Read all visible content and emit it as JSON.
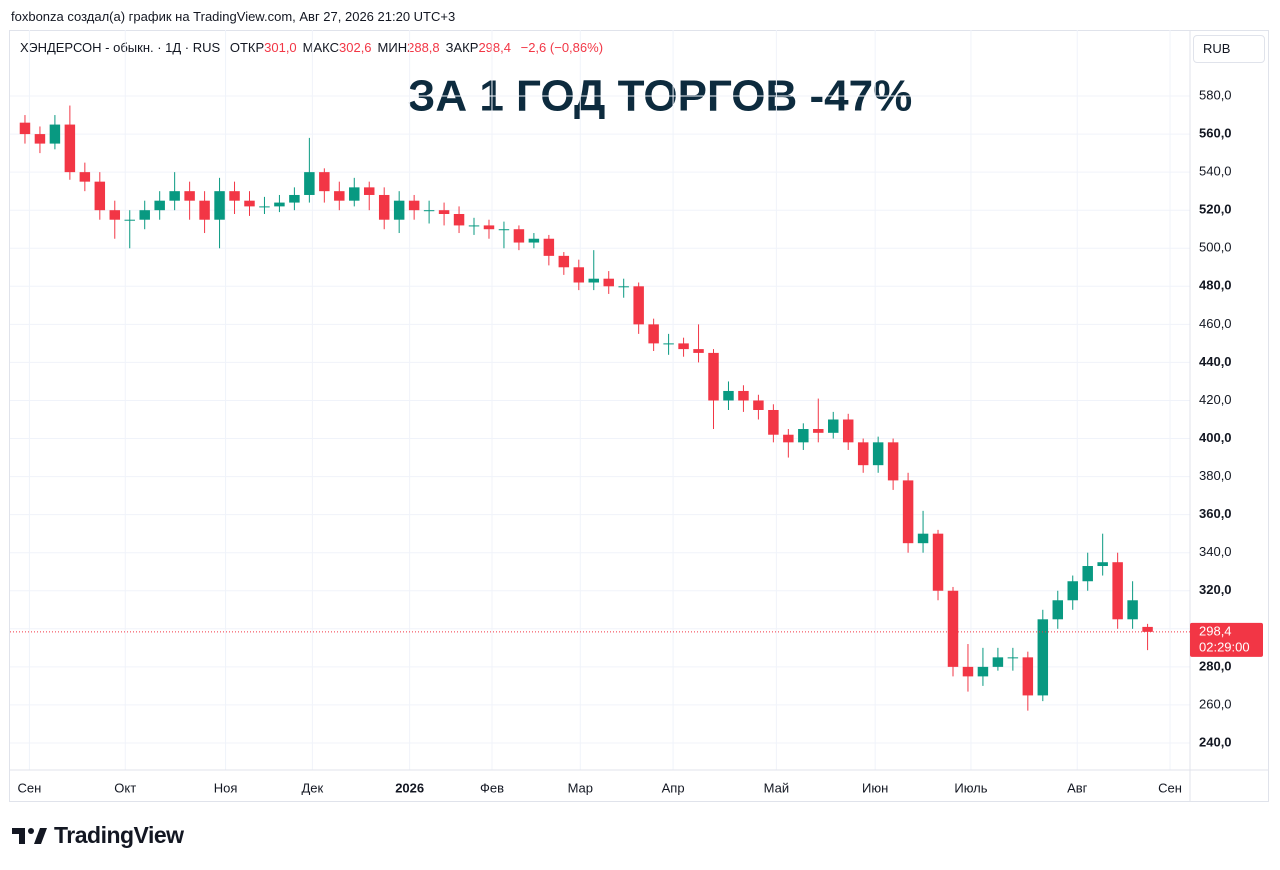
{
  "header": {
    "author_line": "foxbonza создал(а) график на TradingView.com, Авг 27, 2026 21:20 UTC+3",
    "currency": "RUB",
    "logo": "TradingView"
  },
  "chart_data": {
    "type": "candlestick",
    "title": "ЗА 1 ГОД ТОРГОВ -47%",
    "symbol": "ХЭНДЕРСОН - обыкн. · 1Д · RUS",
    "ohlc_legend": [
      {
        "name": "ОТКР",
        "value": 301.0,
        "label": "301,0"
      },
      {
        "name": "МАКС",
        "value": 302.6,
        "label": "302,6"
      },
      {
        "name": "МИН",
        "value": 288.8,
        "label": "288,8"
      },
      {
        "name": "ЗАКР",
        "value": 298.4,
        "label": "298,4"
      }
    ],
    "change": {
      "value": -2.6,
      "label": "−2,6"
    },
    "change_pct": {
      "value": -0.86,
      "label": "(−0,86%)"
    },
    "last_price": {
      "value": 298.4,
      "label": "298,4"
    },
    "countdown": "02:29:00",
    "up_color": "#089981",
    "down_color": "#f23645",
    "grid": true,
    "x": [
      0,
      1,
      2,
      3,
      4,
      5,
      6,
      7,
      8,
      9,
      10,
      11,
      12,
      13,
      14,
      15,
      16,
      17,
      18,
      19,
      20,
      21,
      22,
      23,
      24,
      25,
      26,
      27,
      28,
      29,
      30,
      31,
      32,
      33,
      34,
      35,
      36,
      37,
      38,
      39,
      40,
      41,
      42,
      43,
      44,
      45,
      46,
      47,
      48,
      49,
      50,
      51,
      52,
      53,
      54,
      55,
      56,
      57,
      58,
      59,
      60,
      61,
      62,
      63,
      64,
      65,
      66,
      67,
      68,
      69,
      70,
      71,
      72,
      73,
      74,
      75
    ],
    "open": [
      566,
      560,
      555,
      565,
      540,
      535,
      520,
      515,
      515,
      520,
      525,
      530,
      525,
      515,
      530,
      525,
      522,
      522,
      524,
      528,
      540,
      530,
      525,
      532,
      528,
      515,
      525,
      520,
      520,
      518,
      512,
      512,
      510,
      510,
      503,
      505,
      496,
      490,
      482,
      484,
      480,
      480,
      460,
      450,
      450,
      447,
      445,
      420,
      425,
      420,
      415,
      402,
      398,
      405,
      403,
      410,
      398,
      386,
      398,
      378,
      345,
      350,
      320,
      280,
      275,
      280,
      285,
      285,
      265,
      305,
      315,
      325,
      333,
      335,
      305,
      301
    ],
    "high": [
      570,
      564,
      570,
      575,
      545,
      540,
      525,
      520,
      525,
      530,
      540,
      535,
      530,
      537,
      535,
      530,
      527,
      528,
      532,
      558,
      542,
      535,
      537,
      535,
      532,
      530,
      528,
      525,
      524,
      522,
      516,
      515,
      514,
      512,
      508,
      507,
      498,
      494,
      499,
      488,
      484,
      482,
      463,
      455,
      453,
      460,
      447,
      430,
      428,
      423,
      418,
      405,
      408,
      421,
      414,
      413,
      400,
      401,
      400,
      382,
      362,
      352,
      322,
      292,
      290,
      290,
      290,
      288,
      310,
      320,
      328,
      340,
      350,
      340,
      325,
      302.6
    ],
    "low": [
      555,
      550,
      552,
      536,
      530,
      515,
      505,
      500,
      510,
      515,
      520,
      515,
      508,
      500,
      518,
      517,
      518,
      519,
      520,
      524,
      524,
      520,
      522,
      520,
      510,
      508,
      515,
      513,
      512,
      508,
      507,
      505,
      500,
      499,
      500,
      491,
      486,
      478,
      478,
      476,
      474,
      455,
      446,
      444,
      443,
      440,
      405,
      415,
      414,
      410,
      398,
      390,
      394,
      398,
      400,
      394,
      382,
      382,
      373,
      340,
      340,
      315,
      275,
      267,
      270,
      278,
      278,
      257,
      262,
      300,
      310,
      320,
      328,
      300,
      300,
      288.8
    ],
    "close": [
      560,
      555,
      565,
      540,
      535,
      520,
      515,
      515,
      520,
      525,
      530,
      525,
      515,
      530,
      525,
      522,
      522,
      524,
      528,
      540,
      530,
      525,
      532,
      528,
      515,
      525,
      520,
      520,
      518,
      512,
      512,
      510,
      510,
      503,
      505,
      496,
      490,
      482,
      484,
      480,
      480,
      460,
      450,
      450,
      447,
      445,
      420,
      425,
      420,
      415,
      402,
      398,
      405,
      403,
      410,
      398,
      386,
      398,
      378,
      345,
      350,
      320,
      280,
      275,
      280,
      285,
      285,
      265,
      305,
      315,
      325,
      333,
      335,
      305,
      315,
      298.4
    ],
    "xlim": [
      -1,
      77.5
    ],
    "xticks": [
      {
        "value": 0.3,
        "label": "Сен"
      },
      {
        "value": 6.7,
        "label": "Окт"
      },
      {
        "value": 13.4,
        "label": "Ноя"
      },
      {
        "value": 19.2,
        "label": "Дек"
      },
      {
        "value": 25.7,
        "label": "2026"
      },
      {
        "value": 31.2,
        "label": "Фев"
      },
      {
        "value": 37.1,
        "label": "Мар"
      },
      {
        "value": 43.3,
        "label": "Апр"
      },
      {
        "value": 50.2,
        "label": "Май"
      },
      {
        "value": 56.8,
        "label": "Июн"
      },
      {
        "value": 63.2,
        "label": "Июль"
      },
      {
        "value": 70.3,
        "label": "Авг"
      },
      {
        "value": 76.5,
        "label": "Сен"
      }
    ],
    "ylim": [
      225.8,
      614.7
    ],
    "yticks": [
      {
        "value": 240,
        "label": "240,0"
      },
      {
        "value": 260,
        "label": "260,0"
      },
      {
        "value": 280,
        "label": "280,0"
      },
      {
        "value": 300,
        "label": "300,0"
      },
      {
        "value": 320,
        "label": "320,0"
      },
      {
        "value": 340,
        "label": "340,0"
      },
      {
        "value": 360,
        "label": "360,0"
      },
      {
        "value": 380,
        "label": "380,0"
      },
      {
        "value": 400,
        "label": "400,0"
      },
      {
        "value": 420,
        "label": "420,0"
      },
      {
        "value": 440,
        "label": "440,0"
      },
      {
        "value": 460,
        "label": "460,0"
      },
      {
        "value": 480,
        "label": "480,0"
      },
      {
        "value": 500,
        "label": "500,0"
      },
      {
        "value": 520,
        "label": "520,0"
      },
      {
        "value": 540,
        "label": "540,0"
      },
      {
        "value": 560,
        "label": "560,0"
      },
      {
        "value": 580,
        "label": "580,0"
      }
    ]
  }
}
